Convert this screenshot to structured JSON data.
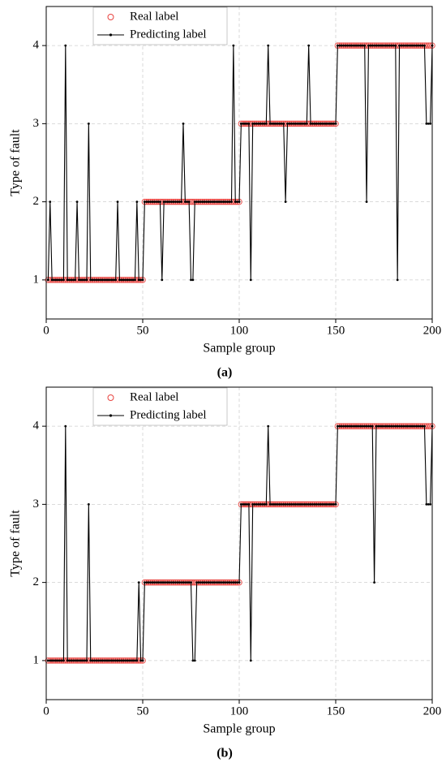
{
  "chart_data": [
    {
      "type": "line",
      "caption": "(a)",
      "xlabel": "Sample group",
      "ylabel": "Type of fault",
      "xlim": [
        0,
        200
      ],
      "xticks": [
        0,
        50,
        100,
        150,
        200
      ],
      "ylim": [
        0.5,
        4.5
      ],
      "yticks": [
        1,
        2,
        3,
        4
      ],
      "grid": true,
      "legend": "upper left",
      "x": [
        1,
        2,
        3,
        4,
        5,
        6,
        7,
        8,
        9,
        10,
        11,
        12,
        13,
        14,
        15,
        16,
        17,
        18,
        19,
        20,
        21,
        22,
        23,
        24,
        25,
        26,
        27,
        28,
        29,
        30,
        31,
        32,
        33,
        34,
        35,
        36,
        37,
        38,
        39,
        40,
        41,
        42,
        43,
        44,
        45,
        46,
        47,
        48,
        49,
        50,
        51,
        52,
        53,
        54,
        55,
        56,
        57,
        58,
        59,
        60,
        61,
        62,
        63,
        64,
        65,
        66,
        67,
        68,
        69,
        70,
        71,
        72,
        73,
        74,
        75,
        76,
        77,
        78,
        79,
        80,
        81,
        82,
        83,
        84,
        85,
        86,
        87,
        88,
        89,
        90,
        91,
        92,
        93,
        94,
        95,
        96,
        97,
        98,
        99,
        100,
        101,
        102,
        103,
        104,
        105,
        106,
        107,
        108,
        109,
        110,
        111,
        112,
        113,
        114,
        115,
        116,
        117,
        118,
        119,
        120,
        121,
        122,
        123,
        124,
        125,
        126,
        127,
        128,
        129,
        130,
        131,
        132,
        133,
        134,
        135,
        136,
        137,
        138,
        139,
        140,
        141,
        142,
        143,
        144,
        145,
        146,
        147,
        148,
        149,
        150,
        151,
        152,
        153,
        154,
        155,
        156,
        157,
        158,
        159,
        160,
        161,
        162,
        163,
        164,
        165,
        166,
        167,
        168,
        169,
        170,
        171,
        172,
        173,
        174,
        175,
        176,
        177,
        178,
        179,
        180,
        181,
        182,
        183,
        184,
        185,
        186,
        187,
        188,
        189,
        190,
        191,
        192,
        193,
        194,
        195,
        196,
        197,
        198,
        199,
        200
      ],
      "series": [
        {
          "name": "Real label",
          "color": "#e8433f",
          "mode": "markers",
          "values": [
            1,
            1,
            1,
            1,
            1,
            1,
            1,
            1,
            1,
            1,
            1,
            1,
            1,
            1,
            1,
            1,
            1,
            1,
            1,
            1,
            1,
            1,
            1,
            1,
            1,
            1,
            1,
            1,
            1,
            1,
            1,
            1,
            1,
            1,
            1,
            1,
            1,
            1,
            1,
            1,
            1,
            1,
            1,
            1,
            1,
            1,
            1,
            1,
            1,
            1,
            2,
            2,
            2,
            2,
            2,
            2,
            2,
            2,
            2,
            2,
            2,
            2,
            2,
            2,
            2,
            2,
            2,
            2,
            2,
            2,
            2,
            2,
            2,
            2,
            2,
            2,
            2,
            2,
            2,
            2,
            2,
            2,
            2,
            2,
            2,
            2,
            2,
            2,
            2,
            2,
            2,
            2,
            2,
            2,
            2,
            2,
            2,
            2,
            2,
            2,
            3,
            3,
            3,
            3,
            3,
            3,
            3,
            3,
            3,
            3,
            3,
            3,
            3,
            3,
            3,
            3,
            3,
            3,
            3,
            3,
            3,
            3,
            3,
            3,
            3,
            3,
            3,
            3,
            3,
            3,
            3,
            3,
            3,
            3,
            3,
            3,
            3,
            3,
            3,
            3,
            3,
            3,
            3,
            3,
            3,
            3,
            3,
            3,
            3,
            3,
            4,
            4,
            4,
            4,
            4,
            4,
            4,
            4,
            4,
            4,
            4,
            4,
            4,
            4,
            4,
            4,
            4,
            4,
            4,
            4,
            4,
            4,
            4,
            4,
            4,
            4,
            4,
            4,
            4,
            4,
            4,
            4,
            4,
            4,
            4,
            4,
            4,
            4,
            4,
            4,
            4,
            4,
            4,
            4,
            4,
            4,
            4,
            4,
            4,
            4
          ]
        },
        {
          "name": "Predicting label",
          "color": "#000000",
          "mode": "lines+markers",
          "values": [
            1,
            2,
            1,
            1,
            1,
            1,
            1,
            1,
            1,
            4,
            1,
            1,
            1,
            1,
            1,
            2,
            1,
            1,
            1,
            1,
            1,
            3,
            1,
            1,
            1,
            1,
            1,
            1,
            1,
            1,
            1,
            1,
            1,
            1,
            1,
            1,
            2,
            1,
            1,
            1,
            1,
            1,
            1,
            1,
            1,
            1,
            2,
            1,
            1,
            1,
            2,
            2,
            2,
            2,
            2,
            2,
            2,
            2,
            2,
            1,
            2,
            2,
            2,
            2,
            2,
            2,
            2,
            2,
            2,
            2,
            3,
            2,
            2,
            2,
            1,
            1,
            2,
            2,
            2,
            2,
            2,
            2,
            2,
            2,
            2,
            2,
            2,
            2,
            2,
            2,
            2,
            2,
            2,
            2,
            2,
            2,
            4,
            2,
            2,
            2,
            3,
            3,
            3,
            3,
            3,
            1,
            3,
            3,
            3,
            3,
            3,
            3,
            3,
            3,
            4,
            3,
            3,
            3,
            3,
            3,
            3,
            3,
            3,
            2,
            3,
            3,
            3,
            3,
            3,
            3,
            3,
            3,
            3,
            3,
            3,
            4,
            3,
            3,
            3,
            3,
            3,
            3,
            3,
            3,
            3,
            3,
            3,
            3,
            3,
            3,
            4,
            4,
            4,
            4,
            4,
            4,
            4,
            4,
            4,
            4,
            4,
            4,
            4,
            4,
            4,
            2,
            4,
            4,
            4,
            4,
            4,
            4,
            4,
            4,
            4,
            4,
            4,
            4,
            4,
            4,
            4,
            1,
            4,
            4,
            4,
            4,
            4,
            4,
            4,
            4,
            4,
            4,
            4,
            4,
            4,
            4,
            3,
            3,
            3,
            4
          ]
        }
      ]
    },
    {
      "type": "line",
      "caption": "(b)",
      "xlabel": "Sample group",
      "ylabel": "Type of fault",
      "xlim": [
        0,
        200
      ],
      "xticks": [
        0,
        50,
        100,
        150,
        200
      ],
      "ylim": [
        0.5,
        4.5
      ],
      "yticks": [
        1,
        2,
        3,
        4
      ],
      "grid": true,
      "legend": "upper left",
      "x": [
        1,
        2,
        3,
        4,
        5,
        6,
        7,
        8,
        9,
        10,
        11,
        12,
        13,
        14,
        15,
        16,
        17,
        18,
        19,
        20,
        21,
        22,
        23,
        24,
        25,
        26,
        27,
        28,
        29,
        30,
        31,
        32,
        33,
        34,
        35,
        36,
        37,
        38,
        39,
        40,
        41,
        42,
        43,
        44,
        45,
        46,
        47,
        48,
        49,
        50,
        51,
        52,
        53,
        54,
        55,
        56,
        57,
        58,
        59,
        60,
        61,
        62,
        63,
        64,
        65,
        66,
        67,
        68,
        69,
        70,
        71,
        72,
        73,
        74,
        75,
        76,
        77,
        78,
        79,
        80,
        81,
        82,
        83,
        84,
        85,
        86,
        87,
        88,
        89,
        90,
        91,
        92,
        93,
        94,
        95,
        96,
        97,
        98,
        99,
        100,
        101,
        102,
        103,
        104,
        105,
        106,
        107,
        108,
        109,
        110,
        111,
        112,
        113,
        114,
        115,
        116,
        117,
        118,
        119,
        120,
        121,
        122,
        123,
        124,
        125,
        126,
        127,
        128,
        129,
        130,
        131,
        132,
        133,
        134,
        135,
        136,
        137,
        138,
        139,
        140,
        141,
        142,
        143,
        144,
        145,
        146,
        147,
        148,
        149,
        150,
        151,
        152,
        153,
        154,
        155,
        156,
        157,
        158,
        159,
        160,
        161,
        162,
        163,
        164,
        165,
        166,
        167,
        168,
        169,
        170,
        171,
        172,
        173,
        174,
        175,
        176,
        177,
        178,
        179,
        180,
        181,
        182,
        183,
        184,
        185,
        186,
        187,
        188,
        189,
        190,
        191,
        192,
        193,
        194,
        195,
        196,
        197,
        198,
        199,
        200
      ],
      "series": [
        {
          "name": "Real label",
          "color": "#e8433f",
          "mode": "markers",
          "values": [
            1,
            1,
            1,
            1,
            1,
            1,
            1,
            1,
            1,
            1,
            1,
            1,
            1,
            1,
            1,
            1,
            1,
            1,
            1,
            1,
            1,
            1,
            1,
            1,
            1,
            1,
            1,
            1,
            1,
            1,
            1,
            1,
            1,
            1,
            1,
            1,
            1,
            1,
            1,
            1,
            1,
            1,
            1,
            1,
            1,
            1,
            1,
            1,
            1,
            1,
            2,
            2,
            2,
            2,
            2,
            2,
            2,
            2,
            2,
            2,
            2,
            2,
            2,
            2,
            2,
            2,
            2,
            2,
            2,
            2,
            2,
            2,
            2,
            2,
            2,
            2,
            2,
            2,
            2,
            2,
            2,
            2,
            2,
            2,
            2,
            2,
            2,
            2,
            2,
            2,
            2,
            2,
            2,
            2,
            2,
            2,
            2,
            2,
            2,
            2,
            3,
            3,
            3,
            3,
            3,
            3,
            3,
            3,
            3,
            3,
            3,
            3,
            3,
            3,
            3,
            3,
            3,
            3,
            3,
            3,
            3,
            3,
            3,
            3,
            3,
            3,
            3,
            3,
            3,
            3,
            3,
            3,
            3,
            3,
            3,
            3,
            3,
            3,
            3,
            3,
            3,
            3,
            3,
            3,
            3,
            3,
            3,
            3,
            3,
            3,
            4,
            4,
            4,
            4,
            4,
            4,
            4,
            4,
            4,
            4,
            4,
            4,
            4,
            4,
            4,
            4,
            4,
            4,
            4,
            4,
            4,
            4,
            4,
            4,
            4,
            4,
            4,
            4,
            4,
            4,
            4,
            4,
            4,
            4,
            4,
            4,
            4,
            4,
            4,
            4,
            4,
            4,
            4,
            4,
            4,
            4,
            4,
            4,
            4,
            4
          ]
        },
        {
          "name": "Predicting label",
          "color": "#000000",
          "mode": "lines+markers",
          "values": [
            1,
            1,
            1,
            1,
            1,
            1,
            1,
            1,
            1,
            4,
            1,
            1,
            1,
            1,
            1,
            1,
            1,
            1,
            1,
            1,
            1,
            3,
            1,
            1,
            1,
            1,
            1,
            1,
            1,
            1,
            1,
            1,
            1,
            1,
            1,
            1,
            1,
            1,
            1,
            1,
            1,
            1,
            1,
            1,
            1,
            1,
            1,
            2,
            1,
            1,
            2,
            2,
            2,
            2,
            2,
            2,
            2,
            2,
            2,
            2,
            2,
            2,
            2,
            2,
            2,
            2,
            2,
            2,
            2,
            2,
            2,
            2,
            2,
            2,
            2,
            1,
            1,
            2,
            2,
            2,
            2,
            2,
            2,
            2,
            2,
            2,
            2,
            2,
            2,
            2,
            2,
            2,
            2,
            2,
            2,
            2,
            2,
            2,
            2,
            2,
            3,
            3,
            3,
            3,
            3,
            1,
            3,
            3,
            3,
            3,
            3,
            3,
            3,
            3,
            4,
            3,
            3,
            3,
            3,
            3,
            3,
            3,
            3,
            3,
            3,
            3,
            3,
            3,
            3,
            3,
            3,
            3,
            3,
            3,
            3,
            3,
            3,
            3,
            3,
            3,
            3,
            3,
            3,
            3,
            3,
            3,
            3,
            3,
            3,
            3,
            4,
            4,
            4,
            4,
            4,
            4,
            4,
            4,
            4,
            4,
            4,
            4,
            4,
            4,
            4,
            4,
            4,
            4,
            4,
            2,
            4,
            4,
            4,
            4,
            4,
            4,
            4,
            4,
            4,
            4,
            4,
            4,
            4,
            4,
            4,
            4,
            4,
            4,
            4,
            4,
            4,
            4,
            4,
            4,
            4,
            4,
            3,
            3,
            3,
            4
          ]
        }
      ]
    }
  ]
}
